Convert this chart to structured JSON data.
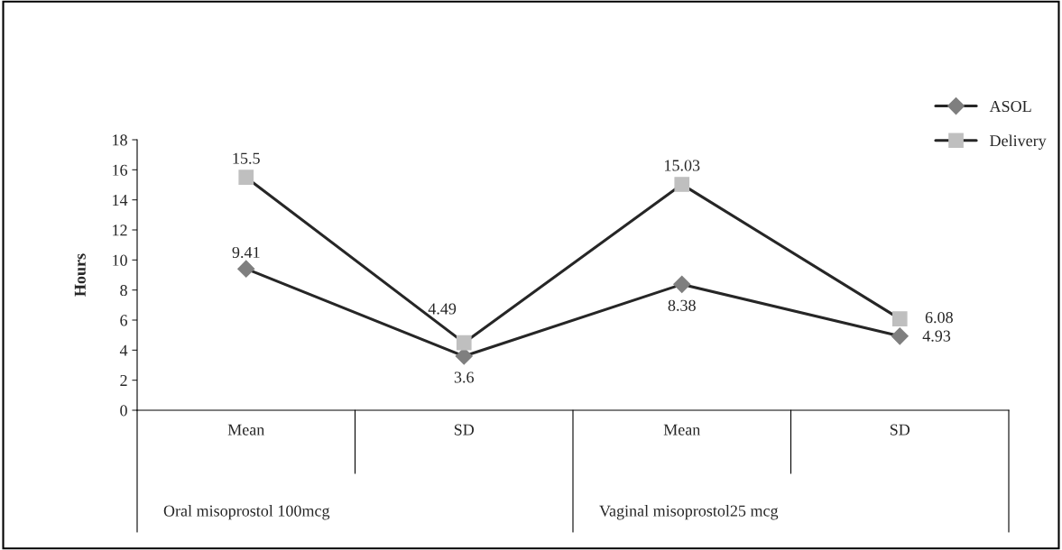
{
  "chart_data": {
    "type": "line",
    "ylabel": "Hours",
    "categories": [
      "Mean",
      "SD",
      "Mean",
      "SD"
    ],
    "annotations": [
      "Oral misoprostol 100mcg",
      "Vaginal misoprostol25 mcg"
    ],
    "series": [
      {
        "name": "ASOL",
        "color": "#7f7f7f",
        "values": [
          9.41,
          3.6,
          8.38,
          4.93
        ],
        "marker": "diamond"
      },
      {
        "name": "Delivery",
        "color": "#bfbfbf",
        "values": [
          15.5,
          4.49,
          15.03,
          6.08
        ],
        "marker": "square"
      }
    ],
    "ylim": [
      0,
      18
    ],
    "yticks": [
      0,
      2,
      4,
      6,
      8,
      10,
      12,
      14,
      16,
      18
    ],
    "grid": false,
    "legend": "top right",
    "data_labels": true,
    "line_style": "solid"
  }
}
